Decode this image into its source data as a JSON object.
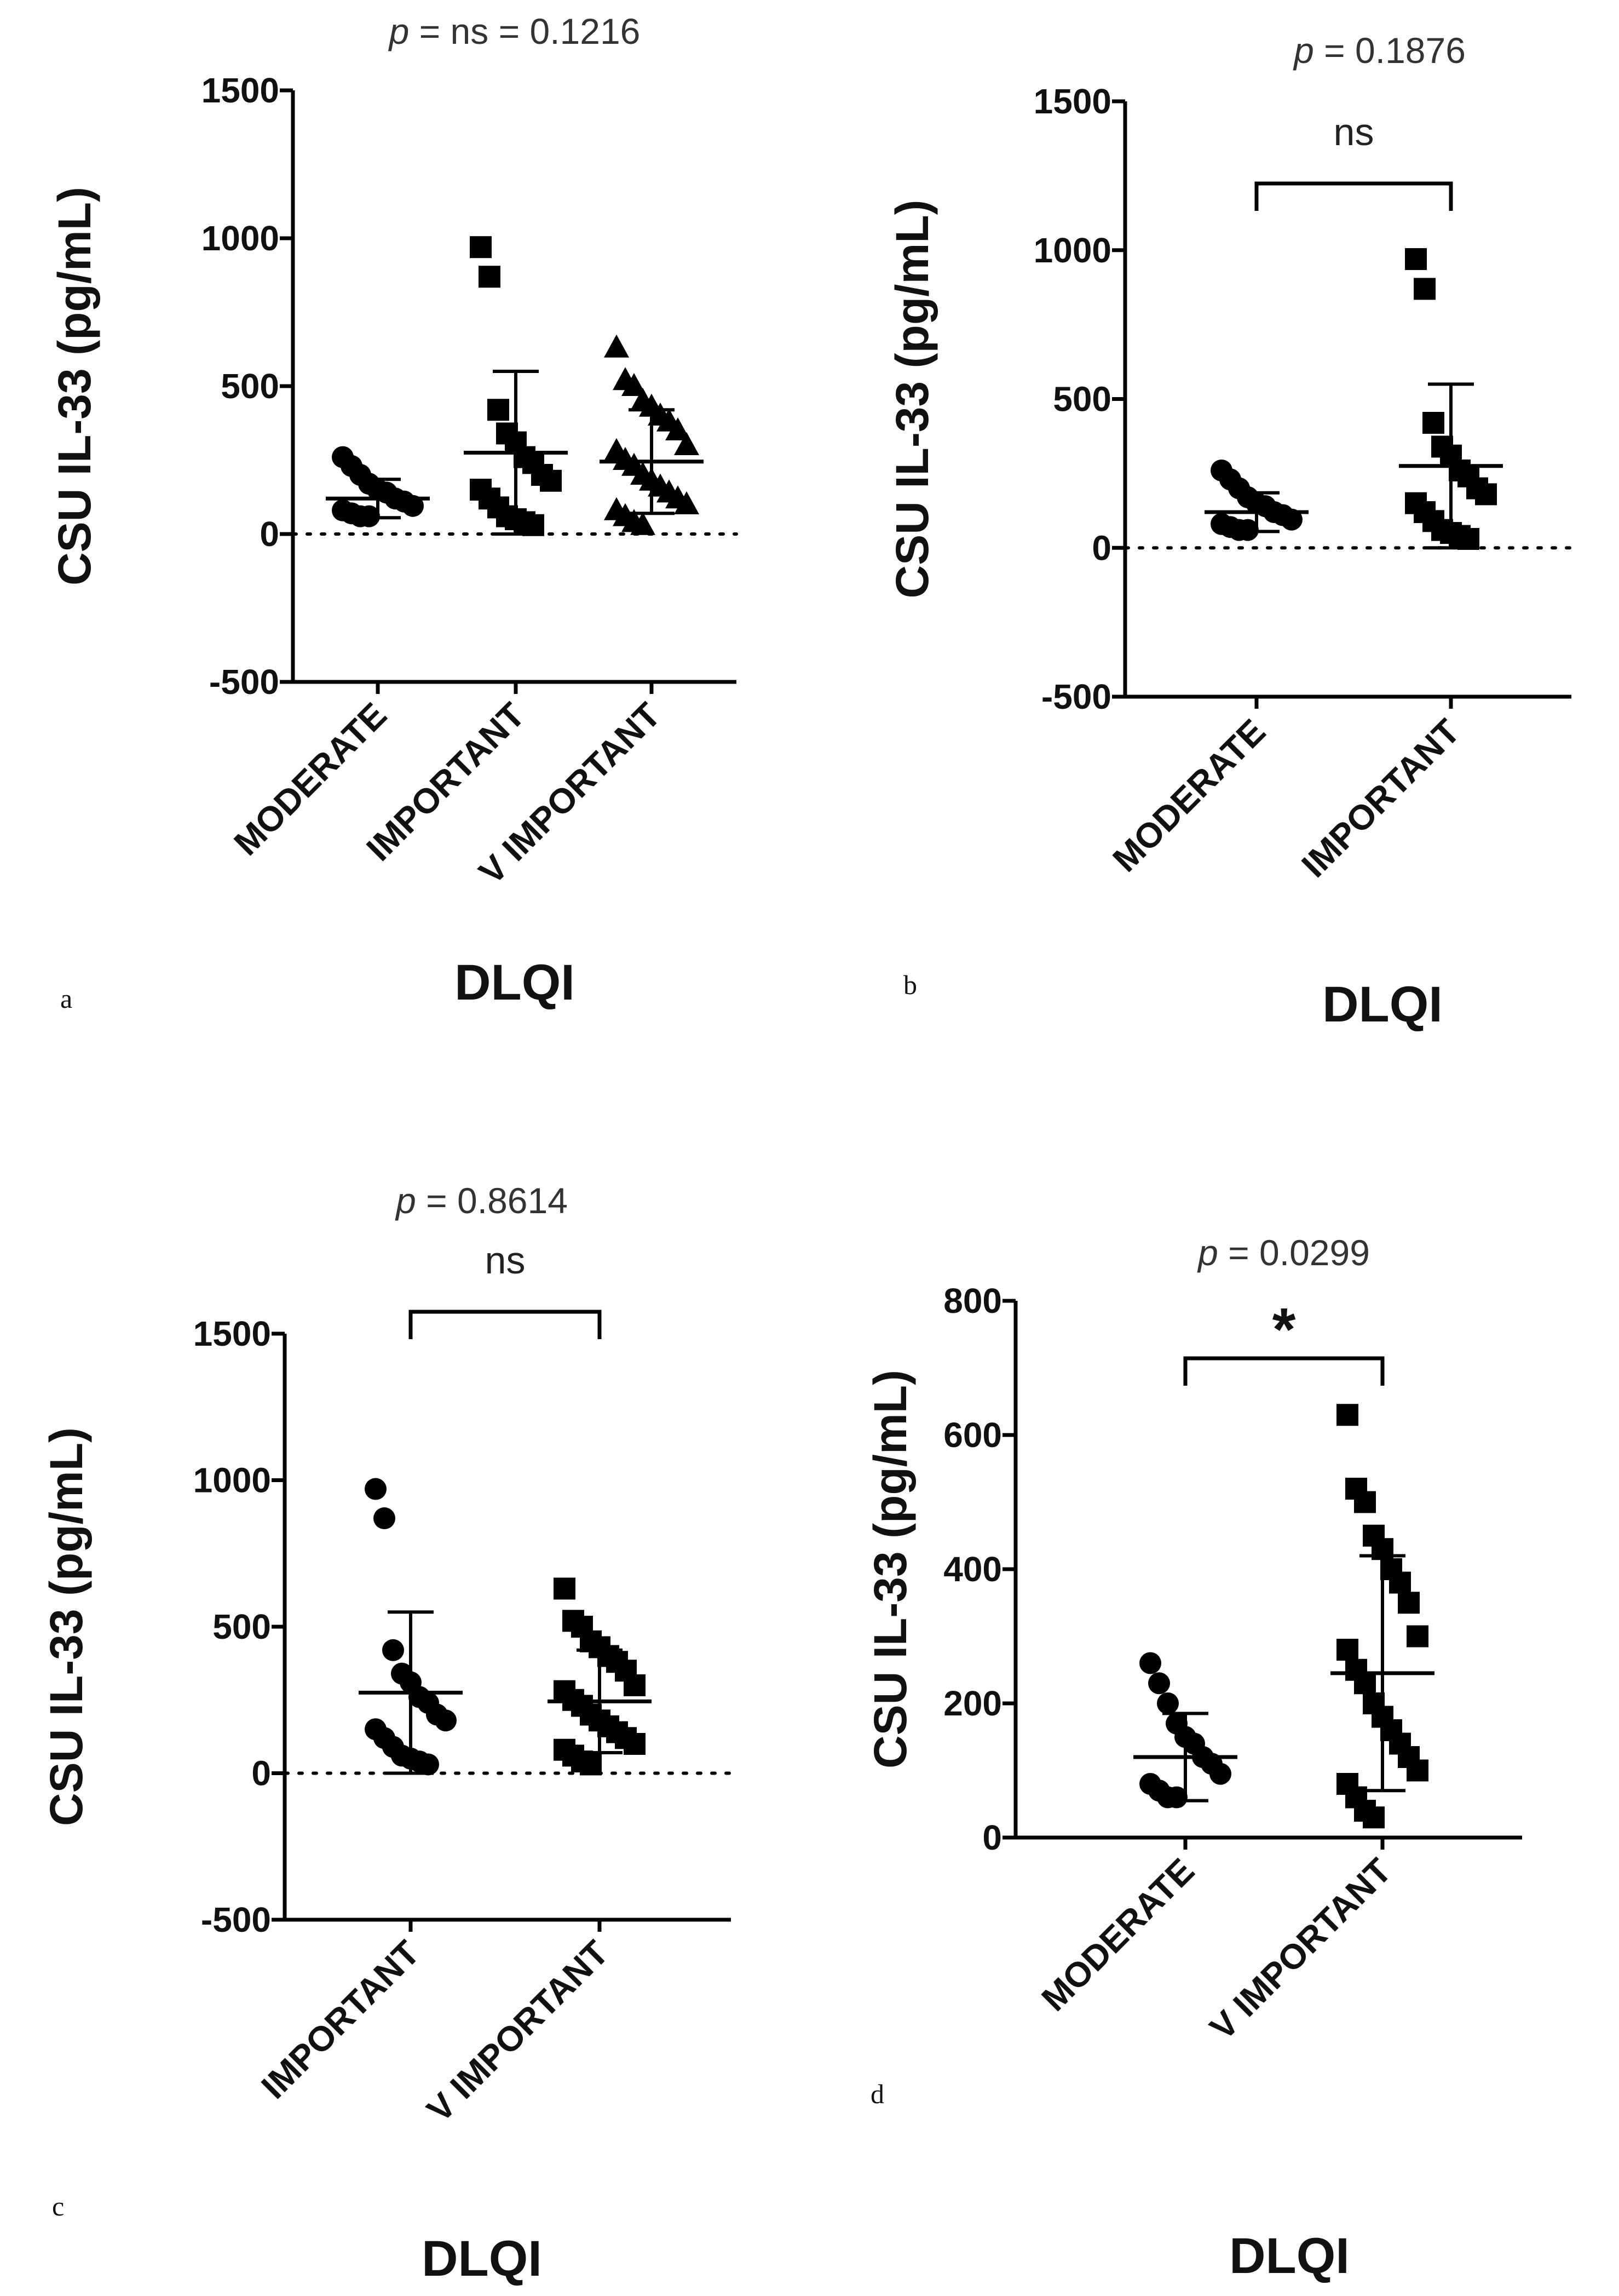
{
  "chart_data": [
    {
      "panel": "a",
      "type": "scatter",
      "title": "p = ns = 0.1216",
      "title_parts": {
        "symbol": "p",
        "rest": " = ns = 0.1216"
      },
      "xlabel": "DLQI",
      "ylabel": "CSU IL-33  (pg/mL)",
      "ylim": [
        -500,
        1500
      ],
      "yticks": [
        -500,
        0,
        500,
        1000,
        1500
      ],
      "categories": [
        "MODERATE",
        "IMPORTANT",
        "V IMPORTANT"
      ],
      "series": [
        {
          "name": "MODERATE",
          "marker": "circle",
          "mean": 120,
          "sd": 65,
          "values": [
            260,
            230,
            200,
            170,
            150,
            140,
            120,
            110,
            95,
            80,
            70,
            60,
            60
          ]
        },
        {
          "name": "IMPORTANT",
          "marker": "square",
          "mean": 275,
          "sd": 275,
          "values": [
            970,
            870,
            420,
            340,
            310,
            260,
            240,
            200,
            180,
            150,
            120,
            90,
            60,
            50,
            40,
            30
          ]
        },
        {
          "name": "V IMPORTANT",
          "marker": "triangle",
          "mean": 245,
          "sd": 175,
          "values": [
            630,
            520,
            500,
            450,
            430,
            400,
            380,
            350,
            300,
            280,
            250,
            230,
            200,
            180,
            160,
            140,
            120,
            100,
            80,
            60,
            40,
            30
          ]
        }
      ],
      "zero_line": true
    },
    {
      "panel": "b",
      "type": "scatter",
      "title": "p = 0.1876",
      "title_parts": {
        "symbol": "p",
        "rest": " = 0.1876"
      },
      "xlabel": "DLQI",
      "ylabel": "CSU IL-33  (pg/mL)",
      "ylim": [
        -500,
        1500
      ],
      "yticks": [
        -500,
        0,
        500,
        1000,
        1500
      ],
      "categories": [
        "MODERATE",
        "IMPORTANT"
      ],
      "comparison": {
        "from": 0,
        "to": 1,
        "label": "ns"
      },
      "series": [
        {
          "name": "MODERATE",
          "marker": "circle",
          "mean": 120,
          "sd": 65,
          "values": [
            260,
            230,
            200,
            170,
            150,
            140,
            120,
            110,
            95,
            80,
            70,
            60,
            60
          ]
        },
        {
          "name": "IMPORTANT",
          "marker": "square",
          "mean": 275,
          "sd": 275,
          "values": [
            970,
            870,
            420,
            340,
            310,
            260,
            240,
            200,
            180,
            150,
            120,
            90,
            60,
            50,
            40,
            30
          ]
        }
      ],
      "zero_line": true
    },
    {
      "panel": "c",
      "type": "scatter",
      "title": "p = 0.8614",
      "title_parts": {
        "symbol": "p",
        "rest": " = 0.8614"
      },
      "xlabel": "DLQI",
      "ylabel": "CSU IL-33  (pg/mL)",
      "ylim": [
        -500,
        1500
      ],
      "yticks": [
        -500,
        0,
        500,
        1000,
        1500
      ],
      "categories": [
        "IMPORTANT",
        "V IMPORTANT"
      ],
      "comparison": {
        "from": 0,
        "to": 1,
        "label": "ns"
      },
      "series": [
        {
          "name": "IMPORTANT",
          "marker": "circle",
          "mean": 275,
          "sd": 275,
          "values": [
            970,
            870,
            420,
            340,
            310,
            260,
            240,
            200,
            180,
            150,
            120,
            90,
            60,
            50,
            40,
            30
          ]
        },
        {
          "name": "V IMPORTANT",
          "marker": "square",
          "mean": 245,
          "sd": 175,
          "values": [
            630,
            520,
            500,
            450,
            430,
            400,
            380,
            350,
            300,
            280,
            250,
            230,
            200,
            180,
            160,
            140,
            120,
            100,
            80,
            60,
            40,
            30
          ]
        }
      ],
      "zero_line": true
    },
    {
      "panel": "d",
      "type": "scatter",
      "title": "p = 0.0299",
      "title_parts": {
        "symbol": "p",
        "rest": " = 0.0299"
      },
      "xlabel": "DLQI",
      "ylabel": "CSU IL-33  (pg/mL)",
      "ylim": [
        0,
        800
      ],
      "yticks": [
        0,
        200,
        400,
        600,
        800
      ],
      "categories": [
        "MODERATE",
        "V IMPORTANT"
      ],
      "comparison": {
        "from": 0,
        "to": 1,
        "label": "*"
      },
      "series": [
        {
          "name": "MODERATE",
          "marker": "circle",
          "mean": 120,
          "sd": 65,
          "values": [
            260,
            230,
            200,
            170,
            150,
            140,
            120,
            110,
            95,
            80,
            70,
            60,
            60
          ]
        },
        {
          "name": "V IMPORTANT",
          "marker": "square",
          "mean": 245,
          "sd": 175,
          "values": [
            630,
            520,
            500,
            450,
            430,
            400,
            380,
            350,
            300,
            280,
            250,
            230,
            200,
            180,
            160,
            140,
            120,
            100,
            80,
            60,
            40,
            30
          ]
        }
      ],
      "zero_line": false
    }
  ]
}
